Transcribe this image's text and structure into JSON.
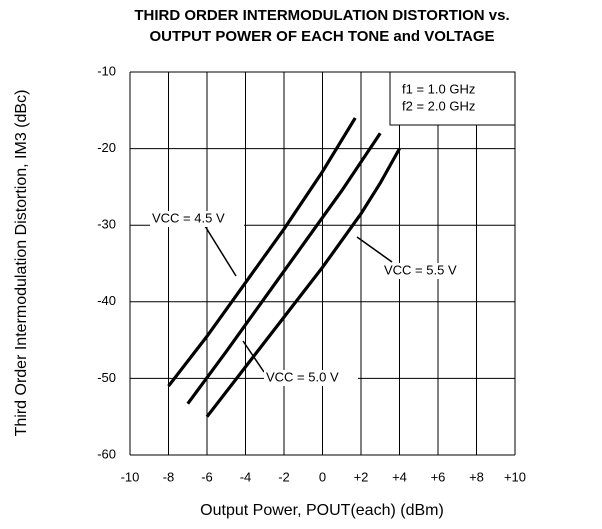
{
  "chart_data": {
    "type": "line",
    "title": [
      "THIRD ORDER INTERMODULATION DISTORTION vs.",
      "OUTPUT POWER OF EACH TONE and VOLTAGE"
    ],
    "xlabel": "Output Power, POUT(each) (dBm)",
    "ylabel": "Third Order Intermodulation Distortion, IM3 (dBc)",
    "notes": [
      "f1 = 1.0 GHz",
      "f2 = 2.0 GHz"
    ],
    "xlim": [
      -10,
      10
    ],
    "xticks": [
      -10,
      -8,
      -6,
      -4,
      -2,
      0,
      {
        "value": 2,
        "label": "+2"
      },
      {
        "value": 4,
        "label": "+4"
      },
      {
        "value": 6,
        "label": "+6"
      },
      {
        "value": 8,
        "label": "+8"
      },
      {
        "value": 10,
        "label": "+10"
      }
    ],
    "ylim": [
      -60,
      -10
    ],
    "yticks": [
      -10,
      -20,
      -30,
      -40,
      -50,
      -60
    ],
    "grid": true,
    "series": [
      {
        "name": "VCC = 4.5 V",
        "color": "#000000",
        "x": [
          -8,
          -6,
          -4,
          -2,
          0,
          1.7
        ],
        "values": [
          -51,
          -44.5,
          -37.5,
          -30.5,
          -23,
          -16
        ]
      },
      {
        "name": "VCC = 5.0 V",
        "color": "#000000",
        "x": [
          -7,
          -5,
          -3,
          -1,
          1,
          3
        ],
        "values": [
          -53.3,
          -46.5,
          -39.5,
          -32.5,
          -25.5,
          -18
        ]
      },
      {
        "name": "VCC = 5.5 V",
        "color": "#000000",
        "x": [
          -6,
          -4,
          -2,
          0,
          2,
          3,
          4
        ],
        "values": [
          -55,
          -48.5,
          -42,
          -35.5,
          -28.5,
          -24.5,
          -20
        ]
      }
    ]
  }
}
